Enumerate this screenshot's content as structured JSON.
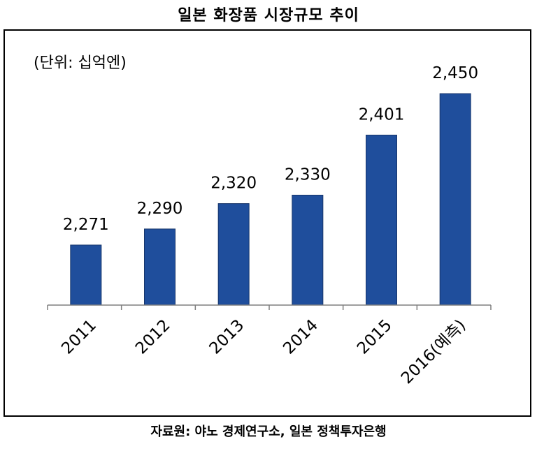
{
  "header": {
    "title": "일본 화장품 시장규모 추이"
  },
  "unit_label": "(단위: 십억엔)",
  "source": "자료원: 야노 경제연구소, 일본 정책투자은행",
  "chart_data": {
    "type": "bar",
    "title": "일본 화장품 시장규모 추이",
    "categories": [
      "2011",
      "2012",
      "2013",
      "2014",
      "2015",
      "2016(예측)"
    ],
    "values": [
      2271,
      2290,
      2320,
      2330,
      2401,
      2450
    ],
    "value_labels": [
      "2,271",
      "2,290",
      "2,320",
      "2,330",
      "2,401",
      "2,450"
    ],
    "xlabel": "",
    "ylabel": "",
    "ylim": [
      2200,
      2460
    ],
    "grid": false,
    "bar_color": "#1F4E9C"
  }
}
